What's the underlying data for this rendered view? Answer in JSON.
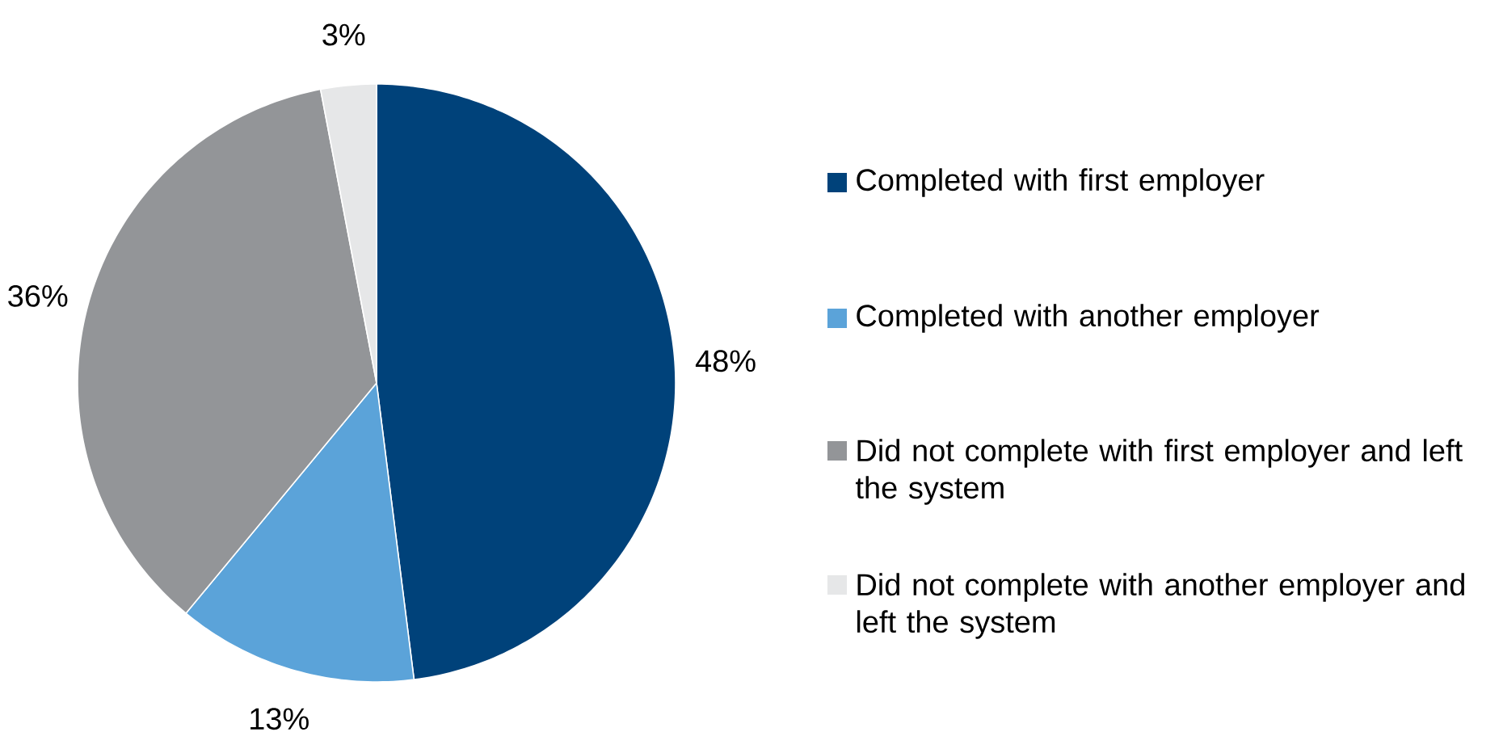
{
  "chart_data": {
    "type": "pie",
    "categories": [
      "Completed with first employer",
      "Completed with another employer",
      "Did not complete with first employer and left the system",
      "Did not complete with another employer and left the system"
    ],
    "values": [
      48,
      13,
      36,
      3
    ],
    "value_labels": [
      "48%",
      "13%",
      "36%",
      "3%"
    ],
    "colors": [
      "#00427a",
      "#5ba3d9",
      "#939598",
      "#e6e7e8"
    ],
    "legend": "right"
  }
}
